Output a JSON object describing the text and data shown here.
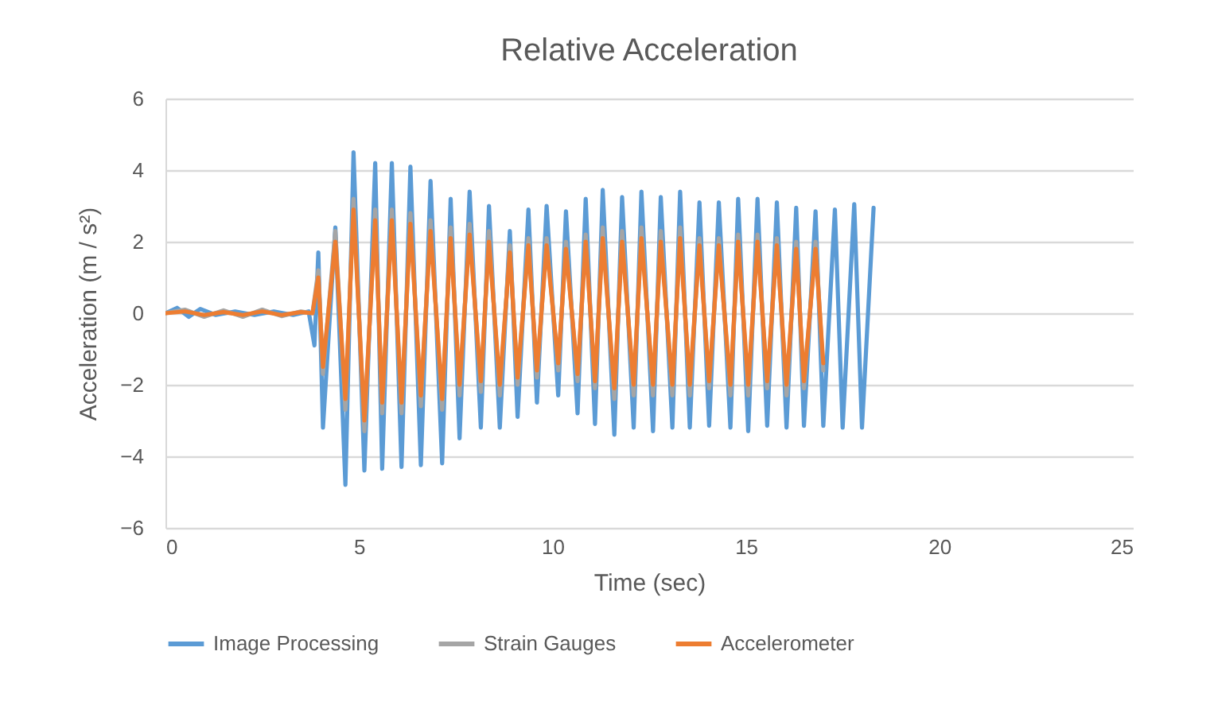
{
  "chart_data": {
    "type": "line",
    "title": "Relative Acceleration",
    "xlabel": "Time (sec)",
    "ylabel": "Acceleration (m / s²)",
    "xlim": [
      0,
      25
    ],
    "xticks": [
      0,
      5,
      10,
      15,
      20,
      25
    ],
    "ylim": [
      -6,
      6
    ],
    "yticks": [
      -6,
      -4,
      -2,
      0,
      2,
      4,
      6
    ],
    "grid": "y",
    "legend": "bottom",
    "line_style": "solid",
    "marker": "none",
    "series": [
      {
        "name": "Image Processing",
        "color": "#5b9bd5",
        "x": [
          0,
          0.3,
          0.6,
          0.9,
          1.3,
          1.8,
          2.3,
          2.8,
          3.3,
          3.7,
          3.85,
          3.95,
          4.07,
          4.39,
          4.65,
          4.86,
          5.14,
          5.42,
          5.6,
          5.85,
          6.1,
          6.33,
          6.6,
          6.85,
          7.15,
          7.37,
          7.6,
          7.86,
          8.15,
          8.36,
          8.64,
          8.9,
          9.1,
          9.38,
          9.6,
          9.85,
          10.15,
          10.35,
          10.65,
          10.86,
          11.1,
          11.3,
          11.6,
          11.8,
          12.1,
          12.3,
          12.6,
          12.8,
          13.1,
          13.3,
          13.55,
          13.8,
          14.05,
          14.3,
          14.6,
          14.8,
          15.06,
          15.3,
          15.55,
          15.8,
          16.05,
          16.3,
          16.5,
          16.8,
          17.0,
          17.3,
          17.5,
          17.8,
          18.0,
          18.3
        ],
        "values": [
          0,
          0.15,
          -0.1,
          0.12,
          -0.05,
          0.05,
          -0.05,
          0.05,
          -0.05,
          0.05,
          -0.9,
          1.7,
          -3.2,
          2.4,
          -4.8,
          4.5,
          -4.4,
          4.2,
          -4.35,
          4.2,
          -4.3,
          4.1,
          -4.25,
          3.7,
          -4.2,
          3.2,
          -3.5,
          3.4,
          -3.2,
          3.0,
          -3.2,
          2.3,
          -2.9,
          2.9,
          -2.5,
          3.0,
          -2.3,
          2.85,
          -2.8,
          3.2,
          -3.1,
          3.45,
          -3.4,
          3.25,
          -3.2,
          3.4,
          -3.3,
          3.25,
          -3.2,
          3.4,
          -3.2,
          3.1,
          -3.15,
          3.1,
          -3.2,
          3.2,
          -3.3,
          3.2,
          -3.15,
          3.1,
          -3.2,
          2.95,
          -3.15,
          2.85,
          -3.15,
          2.9,
          -3.2,
          3.05,
          -3.2,
          2.95
        ]
      },
      {
        "name": "Strain Gauges",
        "color": "#a5a5a5",
        "x": [
          0,
          0.5,
          1,
          1.5,
          2,
          2.5,
          3,
          3.5,
          3.8,
          3.95,
          4.07,
          4.39,
          4.65,
          4.86,
          5.14,
          5.42,
          5.6,
          5.85,
          6.1,
          6.33,
          6.6,
          6.85,
          7.15,
          7.37,
          7.6,
          7.86,
          8.15,
          8.36,
          8.64,
          8.9,
          9.1,
          9.38,
          9.6,
          9.85,
          10.15,
          10.35,
          10.65,
          10.86,
          11.1,
          11.3,
          11.6,
          11.8,
          12.1,
          12.3,
          12.6,
          12.8,
          13.1,
          13.3,
          13.55,
          13.8,
          14.05,
          14.3,
          14.6,
          14.8,
          15.06,
          15.3,
          15.55,
          15.8,
          16.05,
          16.3,
          16.5,
          16.8,
          17.0
        ],
        "values": [
          0,
          0.1,
          -0.1,
          0.08,
          -0.1,
          0.1,
          -0.08,
          0.05,
          0,
          1.2,
          -1.7,
          2.3,
          -2.7,
          3.2,
          -3.3,
          2.9,
          -2.8,
          2.9,
          -2.8,
          2.8,
          -2.6,
          2.6,
          -2.7,
          2.4,
          -2.3,
          2.5,
          -2.2,
          2.3,
          -2.3,
          1.9,
          -2.0,
          2.1,
          -1.8,
          2.1,
          -1.6,
          2.0,
          -1.9,
          2.2,
          -2.1,
          2.4,
          -2.4,
          2.3,
          -2.3,
          2.4,
          -2.3,
          2.3,
          -2.3,
          2.4,
          -2.3,
          2.1,
          -2.1,
          2.1,
          -2.3,
          2.2,
          -2.3,
          2.2,
          -2.1,
          2.1,
          -2.3,
          2.0,
          -2.1,
          2.0,
          -1.6
        ]
      },
      {
        "name": "Accelerometer",
        "color": "#ed7d31",
        "x": [
          0,
          0.5,
          1,
          1.5,
          2,
          2.5,
          3,
          3.5,
          3.8,
          3.95,
          4.07,
          4.39,
          4.65,
          4.86,
          5.14,
          5.42,
          5.6,
          5.85,
          6.1,
          6.33,
          6.6,
          6.85,
          7.15,
          7.37,
          7.6,
          7.86,
          8.15,
          8.36,
          8.64,
          8.9,
          9.1,
          9.38,
          9.6,
          9.85,
          10.15,
          10.35,
          10.65,
          10.86,
          11.1,
          11.3,
          11.6,
          11.8,
          12.1,
          12.3,
          12.6,
          12.8,
          13.1,
          13.3,
          13.55,
          13.8,
          14.05,
          14.3,
          14.6,
          14.8,
          15.06,
          15.3,
          15.55,
          15.8,
          16.05,
          16.3,
          16.5,
          16.8,
          17.0
        ],
        "values": [
          0,
          0.05,
          -0.05,
          0.03,
          -0.05,
          0.05,
          -0.05,
          0.03,
          0,
          1.0,
          -1.5,
          2.0,
          -2.4,
          2.9,
          -3.0,
          2.6,
          -2.5,
          2.6,
          -2.5,
          2.5,
          -2.3,
          2.3,
          -2.4,
          2.1,
          -2.0,
          2.2,
          -1.9,
          2.0,
          -2.0,
          1.7,
          -1.8,
          1.9,
          -1.6,
          1.9,
          -1.4,
          1.8,
          -1.7,
          2.0,
          -1.9,
          2.1,
          -2.1,
          2.0,
          -2.0,
          2.1,
          -2.0,
          2.0,
          -2.0,
          2.1,
          -2.0,
          1.9,
          -1.9,
          1.9,
          -2.0,
          2.0,
          -2.0,
          2.0,
          -1.9,
          1.9,
          -2.0,
          1.8,
          -1.9,
          1.8,
          -1.4
        ]
      }
    ]
  }
}
